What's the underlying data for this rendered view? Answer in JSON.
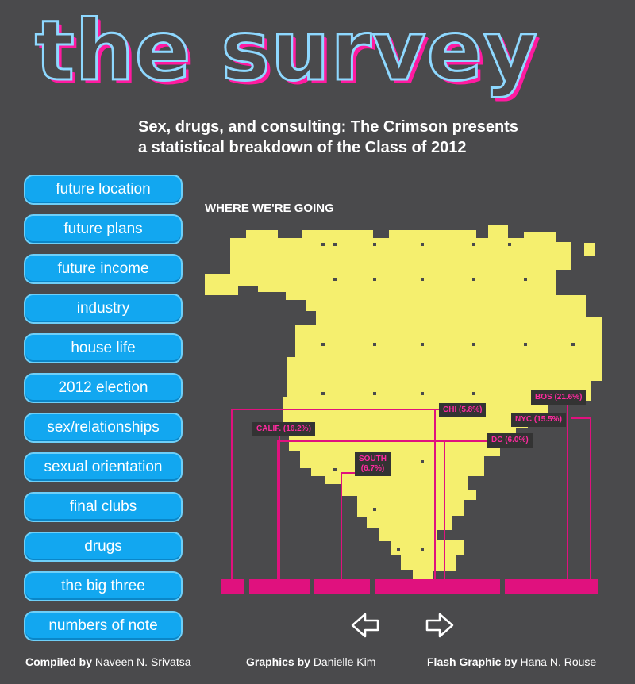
{
  "header": {
    "title": "the survey",
    "subtitle": "Sex, drugs, and consulting: The Crimson presents\na statistical breakdown of the Class of 2012"
  },
  "nav": {
    "items": [
      {
        "label": "future location"
      },
      {
        "label": "future plans"
      },
      {
        "label": "future income"
      },
      {
        "label": "industry"
      },
      {
        "label": "house life"
      },
      {
        "label": "2012 election"
      },
      {
        "label": "sex/relationships"
      },
      {
        "label": "sexual orientation"
      },
      {
        "label": "final clubs"
      },
      {
        "label": "drugs"
      },
      {
        "label": "the big three"
      },
      {
        "label": "numbers of note"
      }
    ]
  },
  "map": {
    "heading": "WHERE WE'RE GOING",
    "land_color": "#f5ef6e",
    "line_color": "#e0117e",
    "labels": {
      "chi": "CHI (5.8%)",
      "bos": "BOS (21.6%)",
      "nyc": "NYC (15.5%)",
      "calif": "CALIF. (16.2%)",
      "dc": "DC (6.0%)",
      "south": "SOUTH\n(6.7%)"
    }
  },
  "pager": {
    "prev_icon": "arrow-left-icon",
    "next_icon": "arrow-right-icon"
  },
  "credits": {
    "compiled_role": "Compiled by",
    "compiled_name": "Naveen N. Srivatsa",
    "graphics_role": "Graphics by",
    "graphics_name": "Danielle Kim",
    "flash_role": "Flash Graphic by",
    "flash_name": "Hana N. Rouse"
  }
}
